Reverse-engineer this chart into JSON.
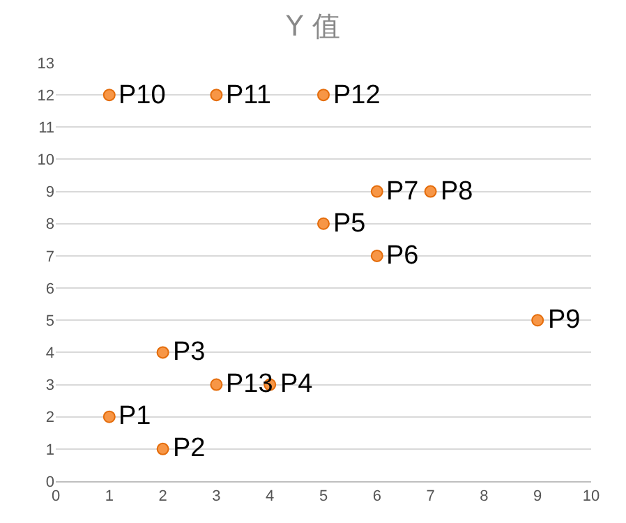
{
  "chart_data": {
    "type": "scatter",
    "title": "Y 值",
    "x": [
      1,
      2,
      2,
      4,
      5,
      6,
      6,
      7,
      9,
      1,
      3,
      5,
      3
    ],
    "values": [
      2,
      1,
      4,
      3,
      8,
      7,
      9,
      9,
      5,
      12,
      12,
      12,
      3
    ],
    "color": "#f79646",
    "marker": "circle",
    "annotations": [
      {
        "text": "P1",
        "x": 1,
        "y": 2
      },
      {
        "text": "P2",
        "x": 2,
        "y": 1
      },
      {
        "text": "P3",
        "x": 2,
        "y": 4
      },
      {
        "text": "P4",
        "x": 4,
        "y": 3
      },
      {
        "text": "P5",
        "x": 5,
        "y": 8
      },
      {
        "text": "P6",
        "x": 6,
        "y": 7
      },
      {
        "text": "P7",
        "x": 6,
        "y": 9
      },
      {
        "text": "P8",
        "x": 7,
        "y": 9
      },
      {
        "text": "P9",
        "x": 9,
        "y": 5
      },
      {
        "text": "P10",
        "x": 1,
        "y": 12
      },
      {
        "text": "P11",
        "x": 3,
        "y": 12
      },
      {
        "text": "P12",
        "x": 5,
        "y": 12
      },
      {
        "text": "P13",
        "x": 3,
        "y": 3
      }
    ],
    "xlim": [
      0,
      10
    ],
    "xticks": [
      0,
      1,
      2,
      3,
      4,
      5,
      6,
      7,
      8,
      9,
      10
    ],
    "ylim": [
      0,
      13
    ],
    "yticks": [
      0,
      1,
      2,
      3,
      4,
      5,
      6,
      7,
      8,
      9,
      10,
      11,
      12,
      13
    ],
    "grid": "y"
  }
}
